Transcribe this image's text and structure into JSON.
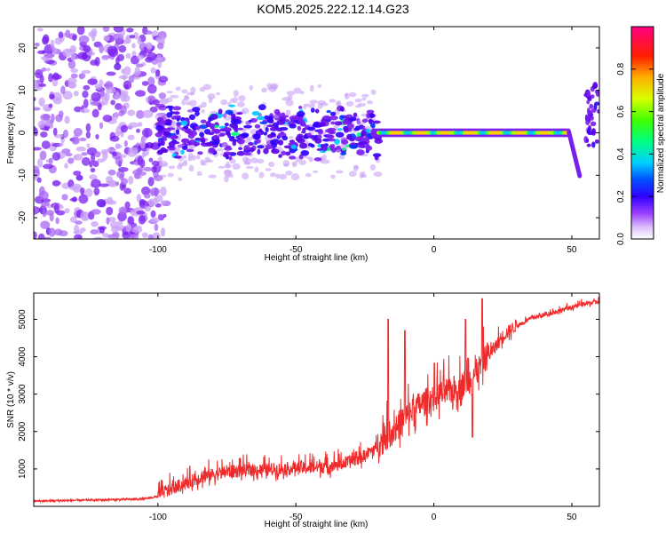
{
  "title": "KOM5.2025.222.12.14.G23",
  "chart_data": [
    {
      "type": "heatmap",
      "name": "spectrogram",
      "xlabel": "Height of straight line (km)",
      "ylabel": "Frequency (Hz)",
      "xlim": [
        -145,
        60
      ],
      "ylim": [
        -25,
        25
      ],
      "xticks": [
        -100,
        -50,
        0,
        50
      ],
      "yticks": [
        -20,
        -10,
        0,
        10,
        20
      ],
      "colorbar": {
        "label": "Normalized spectral amplitude",
        "range": [
          0,
          1
        ],
        "ticks": [
          0.0,
          0.2,
          0.4,
          0.6,
          0.8
        ],
        "tick_labels": [
          "0.0",
          "0.2",
          "0.4",
          "0.6",
          "0.8"
        ],
        "colors": [
          "#ffffff",
          "#b070f0",
          "#6a00ff",
          "#0000ff",
          "#00e0ff",
          "#00ff60",
          "#b0ff00",
          "#ffff00",
          "#ff8000",
          "#ff0000",
          "#ff00a0"
        ]
      },
      "features": [
        {
          "description": "broadband noise",
          "x_range": [
            -145,
            -100
          ],
          "freq_range": [
            -25,
            25
          ],
          "amplitude": 0.05
        },
        {
          "description": "scattered signal band",
          "x_range": [
            -100,
            -20
          ],
          "freq_center": 0,
          "freq_spread": 6,
          "amplitude": 0.25
        },
        {
          "description": "steady carrier",
          "x_range": [
            -20,
            49
          ],
          "freq": 0,
          "amplitude": 0.9
        },
        {
          "description": "frequency drop at end",
          "x_range": [
            49,
            53
          ],
          "freq_start": 0,
          "freq_end": -10
        },
        {
          "description": "late rebound",
          "x_range": [
            55,
            60
          ],
          "freq_range": [
            -3,
            12
          ]
        }
      ]
    },
    {
      "type": "line",
      "name": "snr",
      "xlabel": "Height of straight line (km)",
      "ylabel": "SNR (10 * v/v)",
      "xlim": [
        -145,
        60
      ],
      "ylim": [
        0,
        5700
      ],
      "xticks": [
        -100,
        -50,
        0,
        50
      ],
      "yticks": [
        1000,
        2000,
        3000,
        4000,
        5000
      ],
      "color": "#ee2a2a",
      "series": [
        {
          "name": "SNR",
          "x": [
            -145,
            -130,
            -115,
            -105,
            -100,
            -95,
            -90,
            -85,
            -80,
            -75,
            -70,
            -65,
            -60,
            -55,
            -50,
            -45,
            -40,
            -35,
            -30,
            -25,
            -20,
            -15,
            -10,
            -5,
            0,
            5,
            10,
            15,
            20,
            25,
            30,
            35,
            40,
            45,
            50,
            55,
            60
          ],
          "values": [
            140,
            160,
            180,
            200,
            260,
            420,
            560,
            700,
            800,
            860,
            900,
            920,
            930,
            950,
            960,
            980,
            1000,
            1050,
            1150,
            1300,
            1550,
            1900,
            2300,
            2600,
            2800,
            2950,
            3100,
            3400,
            4000,
            4500,
            4800,
            5000,
            5100,
            5200,
            5300,
            5400,
            5450
          ]
        }
      ],
      "spikes": [
        {
          "x": -16.5,
          "value": 5000
        },
        {
          "x": -10.5,
          "value": 4700
        },
        {
          "x": 11.5,
          "value": 5000
        },
        {
          "x": 17.5,
          "value": 5550
        },
        {
          "x": 14,
          "value": 1850
        }
      ]
    }
  ]
}
